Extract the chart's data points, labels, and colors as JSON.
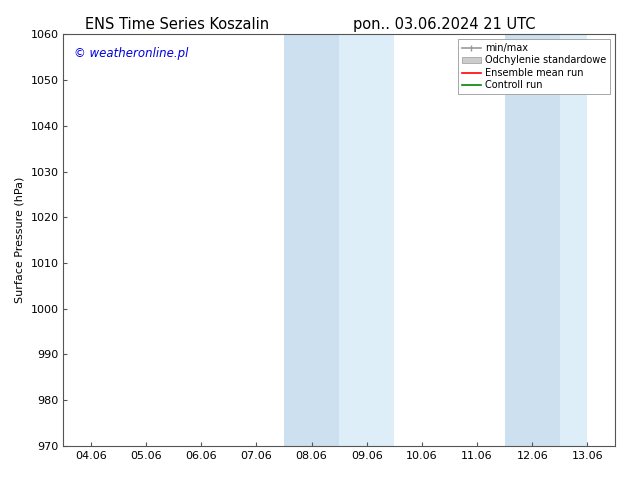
{
  "title_left": "ENS Time Series Koszalin",
  "title_right": "pon.. 03.06.2024 21 UTC",
  "ylabel": "Surface Pressure (hPa)",
  "ylim": [
    970,
    1060
  ],
  "yticks": [
    970,
    980,
    990,
    1000,
    1010,
    1020,
    1030,
    1040,
    1050,
    1060
  ],
  "xtick_labels": [
    "04.06",
    "05.06",
    "06.06",
    "07.06",
    "08.06",
    "09.06",
    "10.06",
    "11.06",
    "12.06",
    "13.06"
  ],
  "band1_darker": [
    4,
    5
  ],
  "band1_lighter": [
    5,
    6
  ],
  "band2_darker": [
    8,
    8.5
  ],
  "band2_lighter": [
    8.5,
    9
  ],
  "band_dark_color": "#cce0f0",
  "band_light_color": "#ddeef8",
  "watermark": "© weatheronline.pl",
  "watermark_color": "#0000dd",
  "legend_entries": [
    "min/max",
    "Odchylenie standardowe",
    "Ensemble mean run",
    "Controll run"
  ],
  "minmax_color": "#999999",
  "std_color": "#cccccc",
  "ensemble_color": "#ff0000",
  "control_color": "#008800",
  "bg_color": "#ffffff",
  "title_fontsize": 10.5,
  "axis_label_fontsize": 8,
  "tick_fontsize": 8,
  "spine_color": "#555555"
}
